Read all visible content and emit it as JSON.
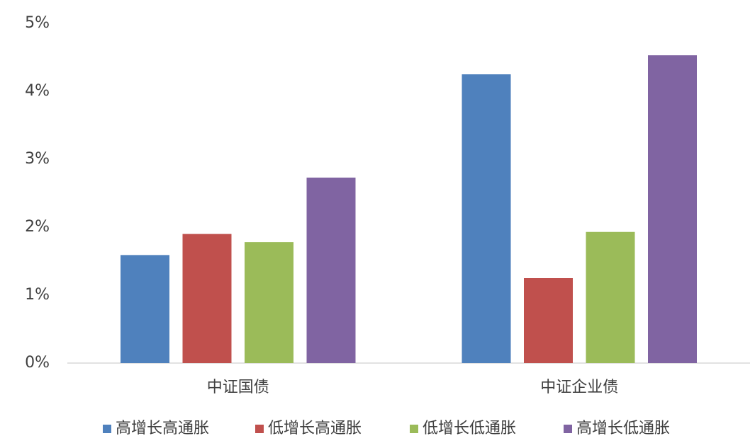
{
  "chart_data": {
    "type": "bar",
    "categories": [
      "中证国债",
      "中证企业债"
    ],
    "series": [
      {
        "name": "高增长高通胀",
        "color": "#4f81bd",
        "values": [
          1.59,
          4.25
        ]
      },
      {
        "name": "低增长高通胀",
        "color": "#c0504d",
        "values": [
          1.9,
          1.25
        ]
      },
      {
        "name": "低增长低通胀",
        "color": "#9bbb59",
        "values": [
          1.78,
          1.93
        ]
      },
      {
        "name": "高增长低通胀",
        "color": "#8064a2",
        "values": [
          2.73,
          4.53
        ]
      }
    ],
    "ylim": [
      0,
      5
    ],
    "yticks": [
      {
        "value": 0,
        "label": "0%"
      },
      {
        "value": 1,
        "label": "1%"
      },
      {
        "value": 2,
        "label": "2%"
      },
      {
        "value": 3,
        "label": "3%"
      },
      {
        "value": 4,
        "label": "4%"
      },
      {
        "value": 5,
        "label": "5%"
      }
    ],
    "grid": false,
    "legend": "bottom"
  }
}
